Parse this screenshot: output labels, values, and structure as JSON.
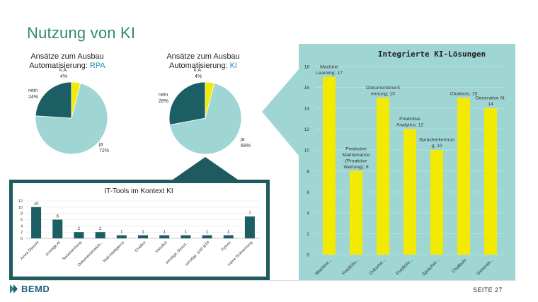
{
  "slide": {
    "title": "Nutzung von KI",
    "page_label": "SEITE 27",
    "logo_text": "BEMD"
  },
  "colors": {
    "teal_dark": "#1b5e63",
    "teal_light": "#9fd6d4",
    "yellow": "#f2ea00",
    "title_green": "#2e8b6f",
    "accent_blue": "#1a8fb8",
    "frame_dark": "#1f5a5f"
  },
  "chart_data": [
    {
      "type": "pie",
      "title_line1": "Ansätze zum Ausbau",
      "title_line2_prefix": "Automatisierung: ",
      "title_line2_accent": "RPA",
      "slices": [
        {
          "label": "ja",
          "pct_label": "72%",
          "value": 72
        },
        {
          "label": "nein",
          "pct_label": "24%",
          "value": 24
        },
        {
          "label": "k.A.",
          "pct_label": "4%",
          "value": 4
        }
      ]
    },
    {
      "type": "pie",
      "title_line1": "Ansätze zum Ausbau",
      "title_line2_prefix": "Automatisierung: ",
      "title_line2_accent": "KI",
      "slices": [
        {
          "label": "ja",
          "pct_label": "68%",
          "value": 68
        },
        {
          "label": "nein",
          "pct_label": "28%",
          "value": 28
        },
        {
          "label": "k.A.",
          "pct_label": "4%",
          "value": 4
        }
      ]
    },
    {
      "type": "bar",
      "title": "Integrierte KI-Lösungen",
      "ylim": [
        0,
        18
      ],
      "yticks": [
        0,
        2,
        4,
        6,
        8,
        10,
        12,
        14,
        16,
        18
      ],
      "grid": true,
      "categories": [
        "Machine...",
        "Predictiv...",
        "Dokume...",
        "Predictiv...",
        "Spracher...",
        "Chatbots",
        "Generati..."
      ],
      "values": [
        17,
        8,
        15,
        12,
        10,
        15,
        14
      ],
      "data_labels": [
        [
          "Machine",
          "Learning; 17"
        ],
        [
          "Predictive",
          "Maintenance",
          "(Proaktive",
          "Wartung); 8"
        ],
        [
          "Dokumentenerk",
          "ennung; 15"
        ],
        [
          "Predictive",
          "Analytics; 12"
        ],
        [
          "Spracherkennun",
          "g; 10"
        ],
        [
          "Chatbots; 15"
        ],
        [
          "Generative AI;",
          "14"
        ]
      ]
    },
    {
      "type": "bar",
      "title": "IT-Tools im Kontext KI",
      "ylim": [
        0,
        12
      ],
      "yticks": [
        0,
        2,
        4,
        6,
        8,
        10,
        12
      ],
      "grid": true,
      "categories": [
        "Azure OpenAI",
        "sonstige AI",
        "Texterkennung",
        "Dokumentenerkln...",
        "Mail-Intelligence",
        "Chatbot",
        "Voicebot",
        "sonstige: Dewol...",
        "sonstige: SAP BTP",
        "Python",
        "Keine Toolnennung"
      ],
      "values": [
        10,
        6,
        2,
        2,
        1,
        1,
        1,
        1,
        1,
        1,
        7
      ],
      "data_labels": [
        "10",
        "6",
        "2",
        "2",
        "1",
        "1",
        "1",
        "1",
        "1",
        "1",
        "7"
      ]
    }
  ]
}
